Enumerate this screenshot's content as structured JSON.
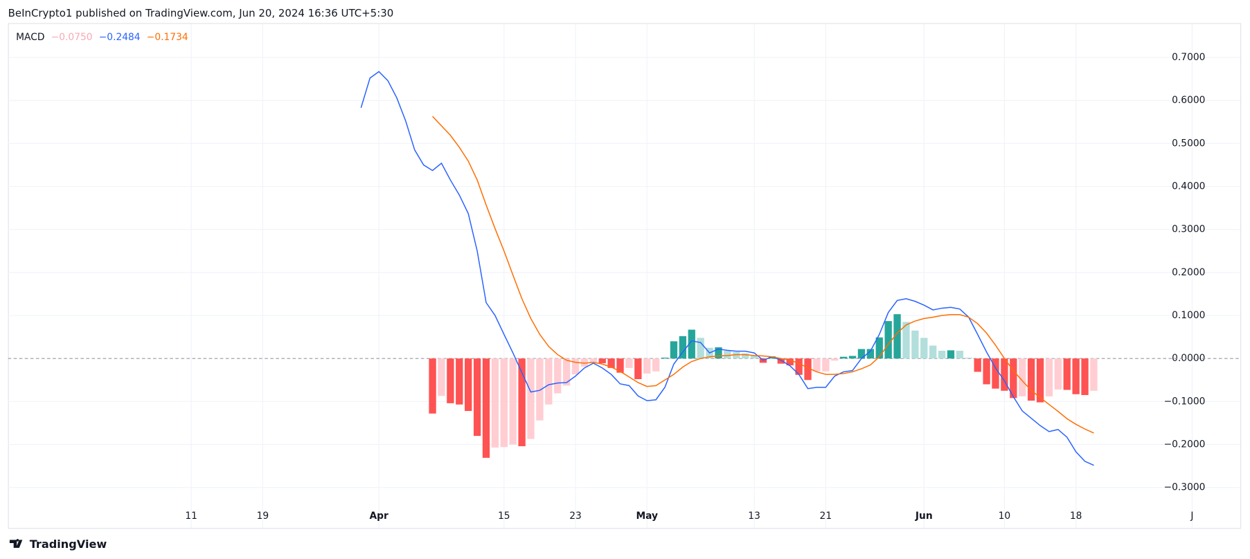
{
  "header": "BeInCrypto1 published on TradingView.com, Jun 20, 2024 16:36 UTC+5:30",
  "footer": "TradingView",
  "chart_data": {
    "type": "line",
    "legend_title": "MACD",
    "x": [
      29,
      30,
      31,
      32,
      33,
      34,
      35,
      36,
      37,
      38,
      39,
      40,
      41,
      42,
      43,
      44,
      45,
      46,
      47,
      48,
      49,
      50,
      51,
      52,
      53,
      54,
      55,
      56,
      57,
      58,
      59,
      60,
      61,
      62,
      63,
      64,
      65,
      66,
      67,
      68,
      69,
      70,
      71,
      72,
      73,
      74,
      75,
      76,
      77,
      78,
      79,
      80,
      81,
      82,
      83,
      84,
      85,
      86,
      87,
      88,
      89,
      90,
      91,
      92,
      93,
      94,
      95,
      96,
      97,
      98,
      99,
      100,
      101,
      102,
      103,
      104,
      105,
      106,
      107,
      108,
      109,
      110,
      111
    ],
    "xlim": [
      -10.5,
      127.4
    ],
    "xticks": [
      {
        "value": 10,
        "label": "11"
      },
      {
        "value": 18,
        "label": "19"
      },
      {
        "value": 31,
        "label": "Apr"
      },
      {
        "value": 45,
        "label": "15"
      },
      {
        "value": 53,
        "label": "23"
      },
      {
        "value": 61,
        "label": "May"
      },
      {
        "value": 73,
        "label": "13"
      },
      {
        "value": 81,
        "label": "21"
      },
      {
        "value": 92,
        "label": "Jun"
      },
      {
        "value": 101,
        "label": "10"
      },
      {
        "value": 109,
        "label": "18"
      },
      {
        "value": 122,
        "label": "J"
      }
    ],
    "ylim": [
      -0.394,
      0.778
    ],
    "yticks": [
      {
        "value": -0.3,
        "label": "−0.3000"
      },
      {
        "value": -0.2,
        "label": "−0.2000"
      },
      {
        "value": -0.1,
        "label": "−0.1000"
      },
      {
        "value": 0,
        "label": "0.0000"
      },
      {
        "value": 0.1,
        "label": "0.1000"
      },
      {
        "value": 0.2,
        "label": "0.2000"
      },
      {
        "value": 0.3,
        "label": "0.3000"
      },
      {
        "value": 0.4,
        "label": "0.4000"
      },
      {
        "value": 0.5,
        "label": "0.5000"
      },
      {
        "value": 0.6,
        "label": "0.6000"
      },
      {
        "value": 0.7,
        "label": "0.7000"
      }
    ],
    "grid": true,
    "series": [
      {
        "type": "bar",
        "color": "#f7a9b5",
        "colors": [
          "#26a69a",
          "#b2dfdb",
          "#ffcdd2",
          "#ff5252"
        ],
        "legend_label": "−0.0750",
        "values": [
          null,
          null,
          null,
          null,
          null,
          null,
          null,
          null,
          -0.128,
          -0.087,
          -0.104,
          -0.107,
          -0.122,
          -0.18,
          -0.231,
          -0.207,
          -0.206,
          -0.2,
          -0.204,
          -0.187,
          -0.144,
          -0.107,
          -0.081,
          -0.063,
          -0.037,
          -0.019,
          -0.009,
          -0.011,
          -0.022,
          -0.033,
          -0.022,
          -0.048,
          -0.035,
          -0.03,
          0.002,
          0.04,
          0.052,
          0.067,
          0.048,
          0.025,
          0.026,
          0.018,
          0.015,
          0.012,
          0.008,
          -0.01,
          0.005,
          -0.012,
          -0.016,
          -0.038,
          -0.05,
          -0.03,
          -0.03,
          -0.005,
          0.004,
          0.006,
          0.022,
          0.022,
          0.049,
          0.087,
          0.103,
          0.085,
          0.065,
          0.048,
          0.03,
          0.018,
          0.019,
          0.018,
          0.002,
          -0.031,
          -0.06,
          -0.07,
          -0.075,
          -0.092,
          -0.088,
          -0.098,
          -0.102,
          -0.088,
          -0.072,
          -0.073,
          -0.083,
          -0.085,
          -0.075
        ]
      },
      {
        "type": "line",
        "color": "#2962ff",
        "legend_label": "−0.2484",
        "values": [
          0.583,
          0.652,
          0.667,
          0.646,
          0.606,
          0.552,
          0.485,
          0.45,
          0.437,
          0.454,
          0.415,
          0.38,
          0.337,
          0.25,
          0.13,
          0.1,
          0.056,
          0.013,
          -0.033,
          -0.078,
          -0.074,
          -0.061,
          -0.057,
          -0.056,
          -0.041,
          -0.022,
          -0.011,
          -0.022,
          -0.037,
          -0.059,
          -0.063,
          -0.087,
          -0.098,
          -0.096,
          -0.067,
          -0.013,
          0.015,
          0.041,
          0.037,
          0.013,
          0.022,
          0.019,
          0.017,
          0.017,
          0.013,
          -0.004,
          0.004,
          -0.004,
          -0.017,
          -0.037,
          -0.07,
          -0.067,
          -0.067,
          -0.041,
          -0.031,
          -0.028,
          0.0,
          0.017,
          0.056,
          0.107,
          0.135,
          0.139,
          0.133,
          0.124,
          0.113,
          0.117,
          0.119,
          0.115,
          0.096,
          0.056,
          0.015,
          -0.022,
          -0.052,
          -0.089,
          -0.122,
          -0.139,
          -0.156,
          -0.17,
          -0.165,
          -0.183,
          -0.217,
          -0.239,
          -0.2484
        ]
      },
      {
        "type": "line",
        "color": "#ff6d00",
        "legend_label": "−0.1734",
        "values": [
          null,
          null,
          null,
          null,
          null,
          null,
          null,
          null,
          0.563,
          0.541,
          0.519,
          0.491,
          0.459,
          0.415,
          0.357,
          0.302,
          0.25,
          0.194,
          0.139,
          0.093,
          0.056,
          0.028,
          0.009,
          -0.004,
          -0.009,
          -0.011,
          -0.009,
          -0.013,
          -0.02,
          -0.03,
          -0.043,
          -0.056,
          -0.065,
          -0.063,
          -0.05,
          -0.037,
          -0.02,
          -0.007,
          0.0,
          0.004,
          0.006,
          0.007,
          0.009,
          0.009,
          0.007,
          0.006,
          0.004,
          0.0,
          -0.004,
          -0.011,
          -0.022,
          -0.031,
          -0.037,
          -0.037,
          -0.035,
          -0.031,
          -0.024,
          -0.015,
          0.004,
          0.033,
          0.059,
          0.078,
          0.087,
          0.093,
          0.096,
          0.1,
          0.102,
          0.102,
          0.096,
          0.081,
          0.059,
          0.031,
          0.0,
          -0.028,
          -0.052,
          -0.074,
          -0.091,
          -0.107,
          -0.123,
          -0.14,
          -0.153,
          -0.164,
          -0.1734
        ]
      }
    ]
  }
}
